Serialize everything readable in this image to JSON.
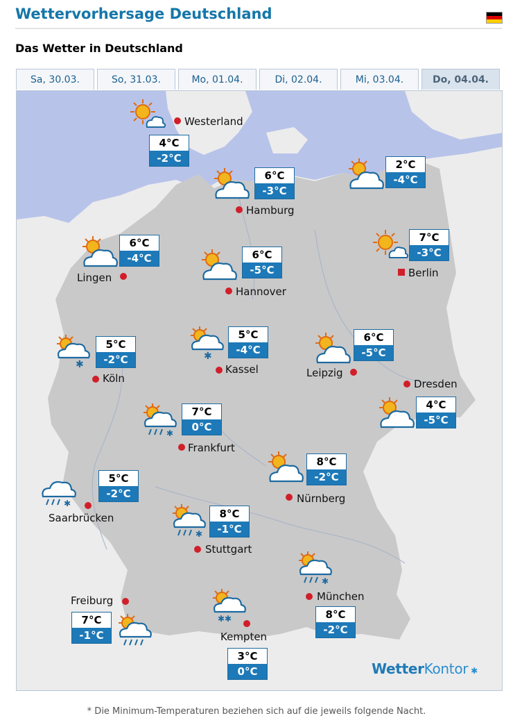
{
  "page": {
    "title": "Wettervorhersage Deutschland",
    "subtitle": "Das Wetter in Deutschland",
    "flag_colors": [
      "#000000",
      "#dd0000",
      "#ffce00"
    ]
  },
  "tabs": [
    {
      "label": "Sa, 30.03.",
      "active": false
    },
    {
      "label": "So, 31.03.",
      "active": false
    },
    {
      "label": "Mo, 01.04.",
      "active": false
    },
    {
      "label": "Di, 02.04.",
      "active": false
    },
    {
      "label": "Mi, 03.04.",
      "active": false
    },
    {
      "label": "Do, 04.04.",
      "active": true
    }
  ],
  "map": {
    "colors": {
      "sea": "#b8c3ea",
      "land": "#ececec",
      "germany": "#c9c9c9",
      "city_marker": "#d11f2a",
      "temp_min_bg": "#1d79b8"
    },
    "cities": [
      {
        "name": "Westerland",
        "max": "4°C",
        "min": "-2°C",
        "icon": "sun-cloud-icon"
      },
      {
        "name": "Hamburg",
        "max": "6°C",
        "min": "-3°C",
        "icon": "sun-cloud-icon"
      },
      {
        "name": "",
        "max": "2°C",
        "min": "-4°C",
        "icon": "sun-cloud-icon"
      },
      {
        "name": "Berlin",
        "max": "7°C",
        "min": "-3°C",
        "icon": "sun-cloud-icon"
      },
      {
        "name": "Lingen",
        "max": "6°C",
        "min": "-4°C",
        "icon": "sun-cloud-icon"
      },
      {
        "name": "Hannover",
        "max": "6°C",
        "min": "-5°C",
        "icon": "sun-cloud-icon"
      },
      {
        "name": "Köln",
        "max": "5°C",
        "min": "-2°C",
        "icon": "sun-cloud-snow-icon"
      },
      {
        "name": "Kassel",
        "max": "5°C",
        "min": "-4°C",
        "icon": "sun-cloud-snow-icon"
      },
      {
        "name": "Leipzig",
        "max": "6°C",
        "min": "-5°C",
        "icon": "sun-cloud-icon"
      },
      {
        "name": "Dresden",
        "max": "4°C",
        "min": "-5°C",
        "icon": "sun-cloud-icon"
      },
      {
        "name": "Frankfurt",
        "max": "7°C",
        "min": "0°C",
        "icon": "sun-cloud-rain-snow-icon"
      },
      {
        "name": "Nürnberg",
        "max": "8°C",
        "min": "-2°C",
        "icon": "sun-cloud-icon"
      },
      {
        "name": "Saarbrücken",
        "max": "5°C",
        "min": "-2°C",
        "icon": "cloud-rain-snow-icon"
      },
      {
        "name": "Stuttgart",
        "max": "8°C",
        "min": "-1°C",
        "icon": "sun-cloud-rain-snow-icon"
      },
      {
        "name": "München",
        "max": "8°C",
        "min": "-2°C",
        "icon": "sun-cloud-rain-snow-icon"
      },
      {
        "name": "Freiburg",
        "max": "7°C",
        "min": "-1°C",
        "icon": "sun-cloud-rain-icon"
      },
      {
        "name": "Kempten",
        "max": "3°C",
        "min": "0°C",
        "icon": "sun-cloud-snow-icon"
      }
    ],
    "brand": {
      "part1": "Wetter",
      "part2": "Kontor"
    }
  },
  "footnote": "* Die Minimum-Temperaturen beziehen sich auf die jeweils folgende Nacht."
}
